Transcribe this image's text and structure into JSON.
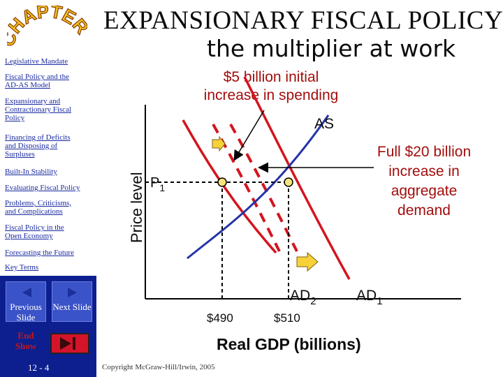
{
  "sidebar": {
    "logo_text": "CHAPTER",
    "items": [
      {
        "label": "Legislative Mandate"
      },
      {
        "label": "Fiscal Policy and the AD-AS Model",
        "lines": [
          "Fiscal Policy and the",
          "AD-AS Model"
        ]
      },
      {
        "label": "Expansionary and Contractionary Fiscal Policy",
        "lines": [
          "Expansionary and",
          "Contractionary Fiscal",
          "Policy"
        ]
      },
      {
        "label": "Financing of Deficits and Disposing of Surpluses",
        "lines": [
          "Financing of Deficits",
          "and Disposing of",
          "Surpluses"
        ]
      },
      {
        "label": "Built-In Stability"
      },
      {
        "label": "Evaluating Fiscal Policy"
      },
      {
        "label": "Problems, Criticisms, and Complications",
        "lines": [
          "Problems, Criticisms,",
          "and Complications"
        ]
      },
      {
        "label": "Fiscal Policy in the Open Economy",
        "lines": [
          "Fiscal Policy in the",
          "Open Economy"
        ]
      },
      {
        "label": "Forecasting the Future"
      },
      {
        "label": "Key Terms"
      }
    ],
    "prev_label": "Previous Slide",
    "next_label": "Next Slide",
    "end_label": "End Show",
    "page": "12 - 4"
  },
  "title": {
    "line1": "EXPANSIONARY FISCAL POLICY",
    "line2": "the multiplier at work"
  },
  "annotations": {
    "initial": "$5 billion initial increase in spending",
    "initial_lines": [
      "$5 billion initial",
      "increase in spending"
    ],
    "full": "Full $20 billion increase in aggregate demand",
    "full_lines": [
      "Full $20 billion",
      "increase in",
      "aggregate",
      "demand"
    ]
  },
  "graph": {
    "y_label": "Price level",
    "x_label": "Real GDP (billions)",
    "p_label": "P",
    "p_sub": "1",
    "x_ticks": [
      "$490",
      "$510"
    ],
    "curves": {
      "as": "AS",
      "ad2": "AD",
      "ad2_sub": "2",
      "ad1": "AD",
      "ad1_sub": "1"
    }
  },
  "colors": {
    "sidebar_panel": "#0d1f8f",
    "nav_link": "#1a2aa0",
    "ad_curve": "#d4141e",
    "as_curve": "#2433a8",
    "annotation": "#a30d0d",
    "arrow_fill": "#f6d13a"
  },
  "copyright": "Copyright McGraw-Hill/Irwin, 2005"
}
